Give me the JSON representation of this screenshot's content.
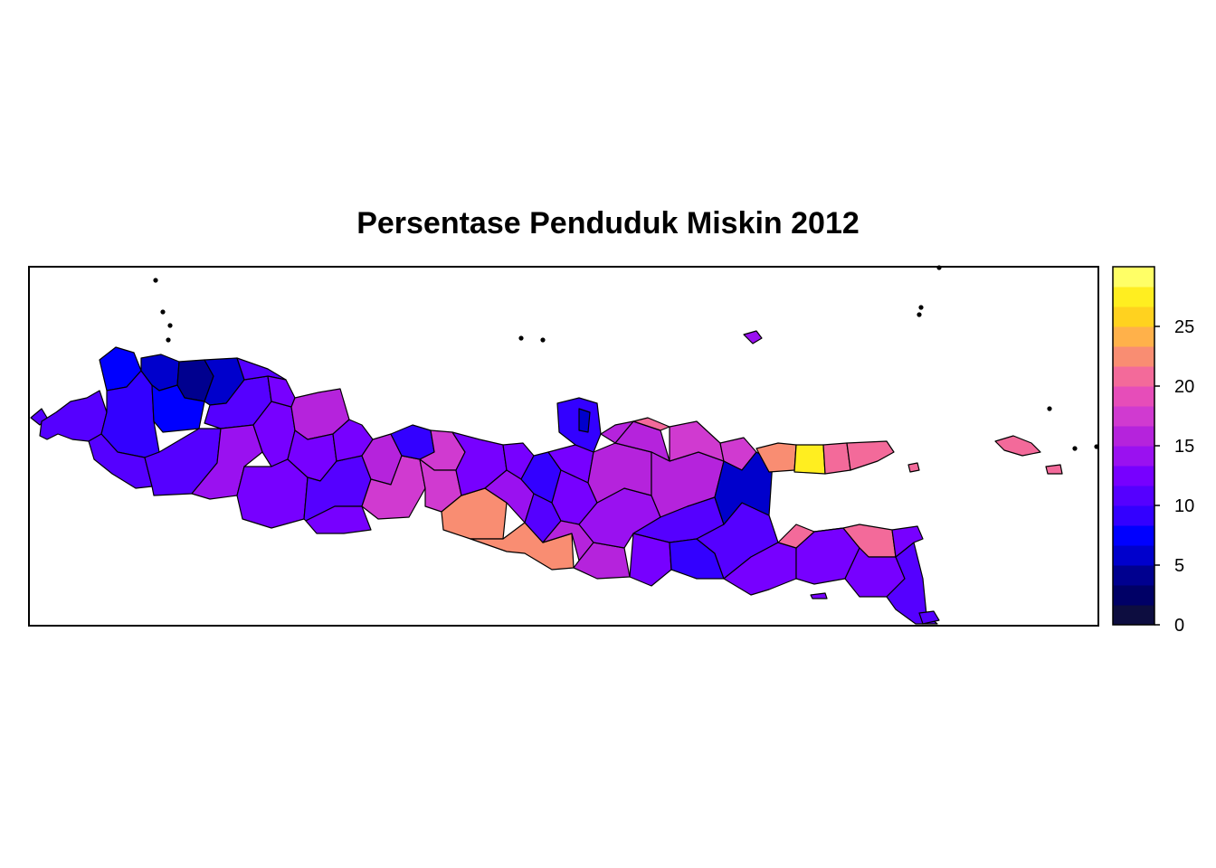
{
  "title": "Persentase Penduduk Miskin 2012",
  "legend": {
    "ticks": [
      0,
      5,
      10,
      15,
      20,
      25
    ],
    "range": [
      0,
      30
    ],
    "steps": 16,
    "palette": [
      "#0d0d40",
      "#000066",
      "#00008f",
      "#0000cc",
      "#0000ff",
      "#3300ff",
      "#5500ff",
      "#7700ff",
      "#9a11f0",
      "#b523dc",
      "#d03ad0",
      "#e64db9",
      "#f36a9a",
      "#f98d72",
      "#ffb14a",
      "#ffd21f",
      "#ffee20",
      "#ffff66"
    ]
  },
  "map": {
    "regions_color_scale": "poverty-percent",
    "shown_values": [
      3,
      5,
      7,
      8,
      9,
      10,
      11,
      12,
      13,
      14,
      15,
      16,
      17,
      18,
      19,
      20,
      21,
      23,
      26,
      28
    ]
  }
}
